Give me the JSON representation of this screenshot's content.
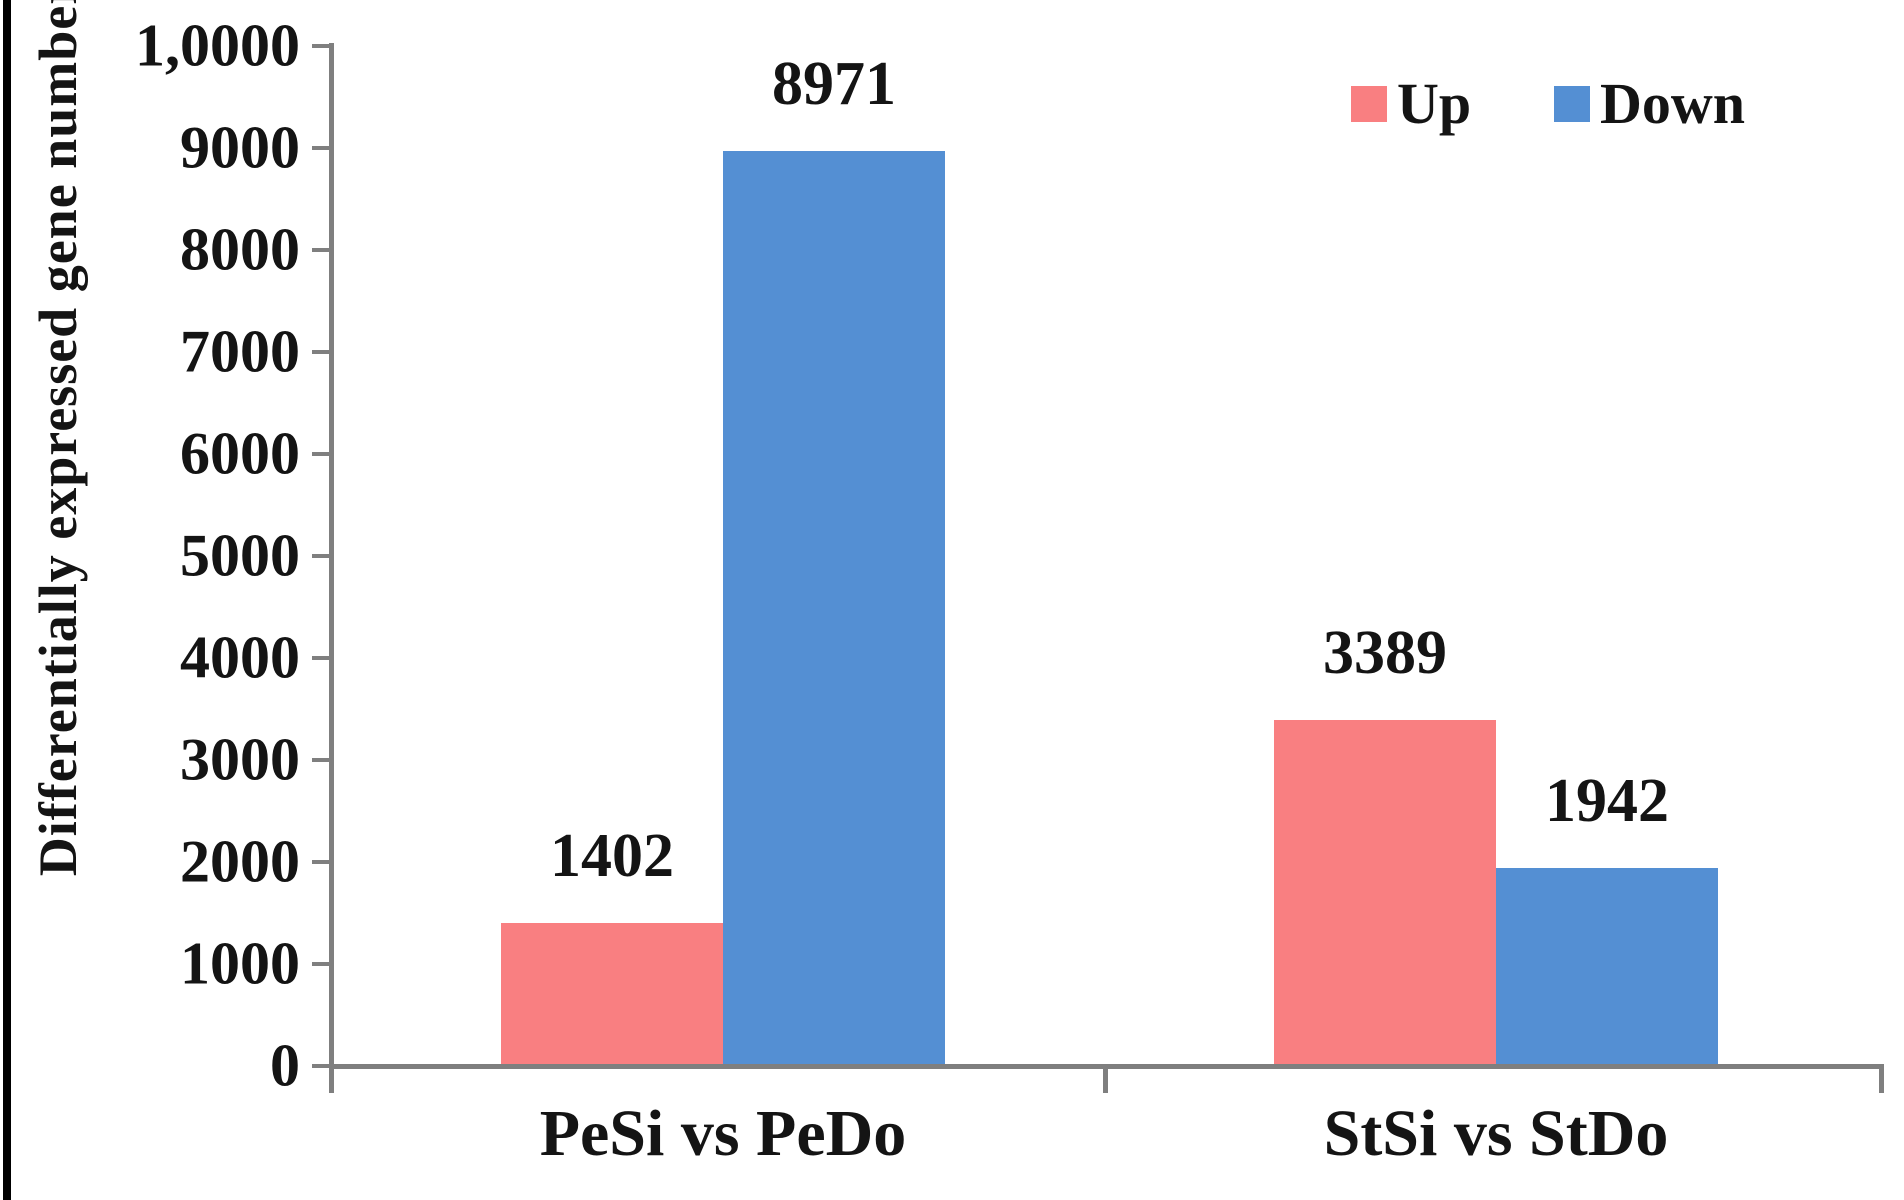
{
  "figure": {
    "background": "#ffffff",
    "frame_color": "#000000",
    "axis_color": "#7f7f7f",
    "text_color": "#141414"
  },
  "chart_data": {
    "type": "bar",
    "title": "",
    "xlabel": "",
    "ylabel": "Differentially expressed gene number",
    "categories": [
      "PeSi vs PeDo",
      "StSi vs StDo"
    ],
    "series": [
      {
        "name": "Up",
        "color": "#f97f81",
        "values": [
          1402,
          3389
        ]
      },
      {
        "name": "Down",
        "color": "#548fd3",
        "values": [
          8971,
          1942
        ]
      }
    ],
    "y_ticks": [
      {
        "value": 10000,
        "label": "1,0000"
      },
      {
        "value": 9000,
        "label": "9000"
      },
      {
        "value": 8000,
        "label": "8000"
      },
      {
        "value": 7000,
        "label": "7000"
      },
      {
        "value": 6000,
        "label": "6000"
      },
      {
        "value": 5000,
        "label": "5000"
      },
      {
        "value": 4000,
        "label": "4000"
      },
      {
        "value": 3000,
        "label": "3000"
      },
      {
        "value": 2000,
        "label": "2000"
      },
      {
        "value": 1000,
        "label": "1000"
      },
      {
        "value": 0,
        "label": "0"
      }
    ],
    "ylim": [
      0,
      10000
    ],
    "grid": false,
    "legend_position": "top-right",
    "value_labels_shown": true
  }
}
